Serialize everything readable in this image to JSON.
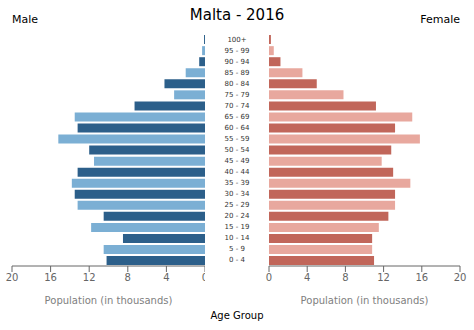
{
  "chart_data": {
    "type": "bar",
    "orientation": "horizontal",
    "title": "Malta - 2016",
    "xlabel": "Population (in thousands)",
    "ylabel": "Age Group",
    "categories": [
      "0 - 4",
      "5 - 9",
      "10 - 14",
      "15 - 19",
      "20 - 24",
      "25 - 29",
      "30 - 34",
      "35 - 39",
      "40 - 44",
      "45 - 49",
      "50 - 54",
      "55 - 59",
      "60 - 64",
      "65 - 69",
      "70 - 74",
      "75 - 79",
      "80 - 84",
      "85 - 89",
      "90 - 94",
      "95 - 99",
      "100+"
    ],
    "series": [
      {
        "name": "Male",
        "values": [
          10.2,
          10.5,
          8.5,
          11.8,
          10.5,
          13.2,
          13.5,
          13.8,
          13.2,
          11.5,
          12.0,
          15.2,
          13.2,
          13.5,
          7.3,
          3.2,
          4.2,
          2.0,
          0.6,
          0.3,
          0.1
        ],
        "colors": [
          "#2c5f8a",
          "#7bafd4",
          "#2c5f8a",
          "#7bafd4",
          "#2c5f8a",
          "#7bafd4",
          "#2c5f8a",
          "#7bafd4",
          "#2c5f8a",
          "#7bafd4",
          "#2c5f8a",
          "#7bafd4",
          "#2c5f8a",
          "#7bafd4",
          "#2c5f8a",
          "#7bafd4",
          "#2c5f8a",
          "#7bafd4",
          "#2c5f8a",
          "#7bafd4",
          "#2c5f8a"
        ]
      },
      {
        "name": "Female",
        "values": [
          11.0,
          10.8,
          10.8,
          11.5,
          12.5,
          13.2,
          13.2,
          14.8,
          13.0,
          11.8,
          12.8,
          15.8,
          13.2,
          15.0,
          11.2,
          7.8,
          5.0,
          3.5,
          1.2,
          0.5,
          0.2
        ],
        "colors": [
          "#c1665a",
          "#e8a89e",
          "#c1665a",
          "#e8a89e",
          "#c1665a",
          "#e8a89e",
          "#c1665a",
          "#e8a89e",
          "#c1665a",
          "#e8a89e",
          "#c1665a",
          "#e8a89e",
          "#c1665a",
          "#e8a89e",
          "#c1665a",
          "#e8a89e",
          "#c1665a",
          "#e8a89e",
          "#c1665a",
          "#e8a89e",
          "#c1665a"
        ]
      }
    ],
    "xlim": [
      0,
      20
    ],
    "xticks": [
      0,
      4,
      8,
      12,
      16,
      20
    ]
  }
}
